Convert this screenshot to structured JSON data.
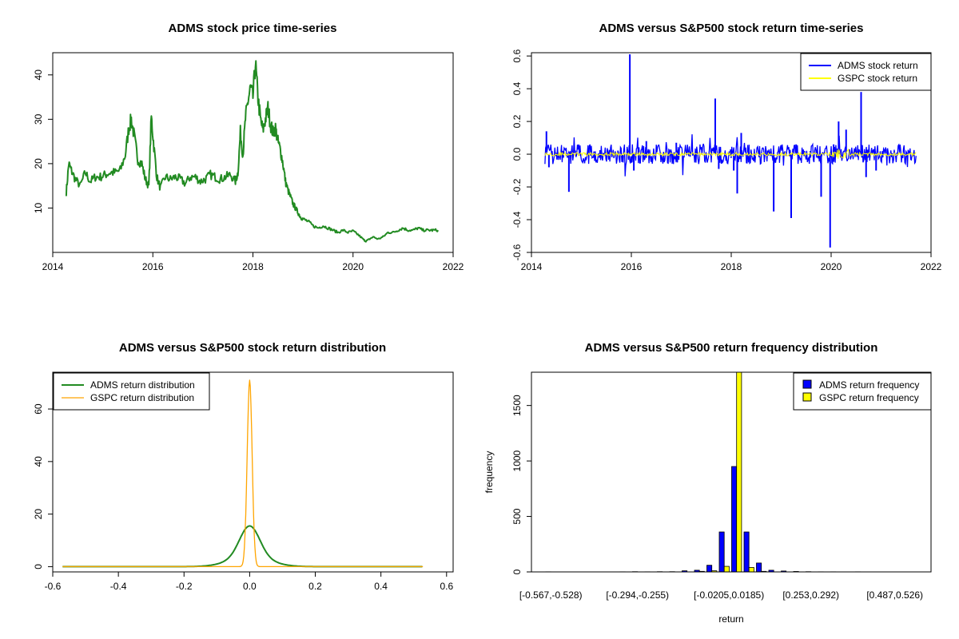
{
  "chart_data": [
    {
      "type": "line",
      "title": "ADMS stock price time-series",
      "xlabel": "",
      "ylabel": "",
      "xlim": [
        2014,
        2022
      ],
      "ylim": [
        0,
        45
      ],
      "x_ticks": [
        "2014",
        "2016",
        "2018",
        "2020",
        "2022"
      ],
      "y_ticks": [
        "10",
        "20",
        "30",
        "40"
      ],
      "colors": {
        "line": "#228B22"
      },
      "series": [
        {
          "x": [
            2014.27,
            2014.32,
            2014.37,
            2014.45,
            2014.55,
            2014.65,
            2014.75,
            2014.85,
            2014.95,
            2015.05,
            2015.15,
            2015.25,
            2015.35,
            2015.45,
            2015.52,
            2015.57,
            2015.63,
            2015.7,
            2015.78,
            2015.85,
            2015.92,
            2015.97,
            2016.02,
            2016.08,
            2016.15,
            2016.25,
            2016.35,
            2016.45,
            2016.55,
            2016.65,
            2016.75,
            2016.85,
            2016.95,
            2017.05,
            2017.15,
            2017.25,
            2017.35,
            2017.45,
            2017.55,
            2017.65,
            2017.7,
            2017.75,
            2017.8,
            2017.85,
            2017.9,
            2017.95,
            2018.0,
            2018.05,
            2018.1,
            2018.15,
            2018.2,
            2018.25,
            2018.3,
            2018.35,
            2018.4,
            2018.45,
            2018.5,
            2018.55,
            2018.6,
            2018.65,
            2018.7,
            2018.75,
            2018.8,
            2018.85,
            2018.9,
            2018.95,
            2019.0,
            2019.1,
            2019.2,
            2019.3,
            2019.4,
            2019.5,
            2019.6,
            2019.7,
            2019.8,
            2019.9,
            2020.0,
            2020.1,
            2020.2,
            2020.25,
            2020.3,
            2020.4,
            2020.5,
            2020.6,
            2020.7,
            2020.8,
            2020.9,
            2021.0,
            2021.1,
            2021.2,
            2021.3,
            2021.4,
            2021.5,
            2021.6,
            2021.7
          ],
          "y": [
            13.5,
            20,
            18.5,
            16.5,
            15,
            18,
            16,
            17,
            17,
            17.5,
            18,
            18,
            18.5,
            22,
            28,
            30,
            26,
            21,
            20,
            16.5,
            15,
            30.5,
            24,
            17,
            14.5,
            17,
            16.5,
            17,
            16.5,
            15.5,
            17,
            17,
            16,
            16.5,
            17.5,
            17,
            16.5,
            17,
            17.5,
            16,
            18,
            27,
            22,
            30,
            34,
            37,
            35,
            42.5,
            35,
            30,
            27.5,
            30,
            32.5,
            29,
            27,
            28,
            25,
            23,
            20,
            16,
            14,
            12.5,
            11,
            10,
            9,
            8,
            7.5,
            7,
            6,
            5.5,
            6,
            5.5,
            5,
            4.5,
            5,
            4.5,
            4.8,
            4,
            3,
            2.5,
            2.8,
            3.5,
            3,
            3.5,
            4.5,
            4.5,
            5,
            5.5,
            5,
            5,
            5.5,
            5,
            5,
            5,
            5
          ]
        }
      ]
    },
    {
      "type": "line",
      "title": "ADMS versus S&P500 stock return time-series",
      "xlabel": "",
      "ylabel": "",
      "xlim": [
        2014,
        2022
      ],
      "ylim": [
        -0.6,
        0.62
      ],
      "x_ticks": [
        "2014",
        "2016",
        "2018",
        "2020",
        "2022"
      ],
      "y_ticks": [
        "-0.6",
        "-0.4",
        "-0.2",
        "0.0",
        "0.2",
        "0.4",
        "0.6"
      ],
      "legend": {
        "position": "top-right",
        "entries": [
          "ADMS stock return",
          "GSPC stock return"
        ]
      },
      "colors": {
        "adms": "#0000FF",
        "gspc": "#FFFF00"
      },
      "series": [
        {
          "name": "ADMS stock return",
          "spikes": [
            [
              2014.3,
              0.14
            ],
            [
              2014.35,
              -0.08
            ],
            [
              2014.75,
              -0.23
            ],
            [
              2015.97,
              0.61
            ],
            [
              2016.05,
              -0.1
            ],
            [
              2016.3,
              0.08
            ],
            [
              2016.9,
              0.07
            ],
            [
              2017.68,
              0.34
            ],
            [
              2017.75,
              -0.09
            ],
            [
              2018.05,
              -0.1
            ],
            [
              2018.12,
              -0.24
            ],
            [
              2018.2,
              0.13
            ],
            [
              2018.85,
              -0.35
            ],
            [
              2019.2,
              -0.39
            ],
            [
              2019.3,
              0.06
            ],
            [
              2019.8,
              -0.26
            ],
            [
              2019.98,
              -0.57
            ],
            [
              2020.05,
              0.06
            ],
            [
              2020.15,
              0.2
            ],
            [
              2020.3,
              0.15
            ],
            [
              2020.6,
              0.38
            ],
            [
              2020.7,
              -0.14
            ],
            [
              2020.9,
              -0.1
            ]
          ]
        },
        {
          "name": "GSPC stock return",
          "note_band": [
            -0.035,
            0.035
          ]
        }
      ]
    },
    {
      "type": "line",
      "title": "ADMS versus S&P500 stock return distribution",
      "xlabel": "",
      "ylabel": "",
      "xlim": [
        -0.6,
        0.62
      ],
      "ylim": [
        0,
        72
      ],
      "x_ticks": [
        "-0.6",
        "-0.4",
        "-0.2",
        "0.0",
        "0.2",
        "0.4",
        "0.6"
      ],
      "y_ticks": [
        "0",
        "20",
        "40",
        "60"
      ],
      "legend": {
        "position": "top-left",
        "entries": [
          "ADMS return distribution",
          "GSPC return distribution"
        ]
      },
      "colors": {
        "adms": "#228B22",
        "gspc": "#FFA500"
      },
      "series": [
        {
          "name": "ADMS return distribution",
          "x": [
            -0.6,
            -0.3,
            -0.2,
            -0.15,
            -0.1,
            -0.07,
            -0.05,
            -0.03,
            -0.02,
            -0.01,
            0,
            0.01,
            0.02,
            0.03,
            0.05,
            0.07,
            0.1,
            0.15,
            0.2,
            0.3,
            0.62
          ],
          "y": [
            0,
            0,
            0.1,
            0.3,
            1,
            2.5,
            4.5,
            8.5,
            11.5,
            14.5,
            15.5,
            14.5,
            11.5,
            8.5,
            4.5,
            2.5,
            1,
            0.3,
            0.1,
            0,
            0
          ]
        },
        {
          "name": "GSPC return distribution",
          "x": [
            -0.6,
            -0.1,
            -0.05,
            -0.03,
            -0.02,
            -0.012,
            -0.006,
            -0.002,
            0,
            0.002,
            0.006,
            0.012,
            0.02,
            0.03,
            0.05,
            0.1,
            0.62
          ],
          "y": [
            0,
            0,
            0.5,
            2,
            6,
            20,
            45,
            65,
            71,
            65,
            45,
            20,
            6,
            2,
            0.5,
            0,
            0
          ]
        }
      ]
    },
    {
      "type": "bar",
      "title": "ADMS versus S&P500 return frequency distribution",
      "xlabel": "return",
      "ylabel": "frequency",
      "ylim": [
        0,
        1800
      ],
      "y_ticks": [
        "0",
        "500",
        "1000",
        "1500"
      ],
      "x_tick_labels": [
        "[-0.567,-0.528)",
        "[-0.294,-0.255)",
        "[-0.0205,0.0185)",
        "[0.253,0.292)",
        "[0.487,0.526)"
      ],
      "legend": {
        "position": "top-right",
        "entries": [
          "ADMS return frequency",
          "GSPC return frequency"
        ]
      },
      "colors": {
        "adms": "#0000FF",
        "gspc": "#FFFF00"
      },
      "bin_count": 30,
      "series": [
        {
          "name": "ADMS return frequency",
          "values": [
            1,
            0,
            0,
            0,
            0,
            0,
            1,
            2,
            1,
            2,
            2,
            10,
            15,
            60,
            360,
            950,
            360,
            80,
            15,
            8,
            4,
            2,
            1,
            1,
            0,
            1,
            0,
            0,
            0,
            0
          ]
        },
        {
          "name": "GSPC return frequency",
          "values": [
            0,
            0,
            0,
            0,
            0,
            0,
            0,
            0,
            0,
            0,
            0,
            0,
            5,
            10,
            50,
            1800,
            40,
            5,
            0,
            0,
            0,
            0,
            0,
            0,
            0,
            0,
            0,
            0,
            0,
            0
          ]
        }
      ]
    }
  ]
}
